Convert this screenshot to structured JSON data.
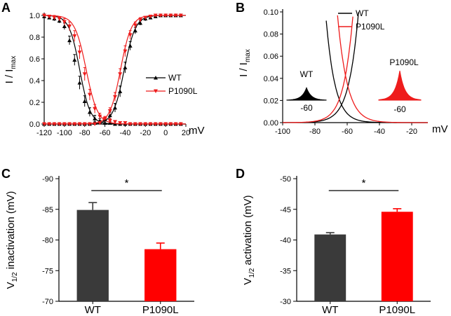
{
  "panels": [
    {
      "label": "A"
    },
    {
      "label": "B"
    },
    {
      "label": "C"
    },
    {
      "label": "D"
    }
  ],
  "colors": {
    "wt": "#000000",
    "mut": "#ee1c1c",
    "wt_bar": "#3a3a3a",
    "mut_bar": "#ff0000"
  },
  "chart_data": [
    {
      "panel": "A",
      "type": "line",
      "xlabel": "mV",
      "ylabel": "I / I",
      "ylabel_sub": "max",
      "xlim": [
        -120,
        20
      ],
      "ylim": [
        0,
        1.0
      ],
      "xticks": [
        -120,
        -100,
        -80,
        -60,
        -40,
        -20,
        0,
        20
      ],
      "xtick_labels": [
        "-120",
        "-100",
        "-80",
        "-60",
        "-40",
        "-20",
        "0",
        "20"
      ],
      "yticks": [
        0.0,
        0.2,
        0.4,
        0.6,
        0.8,
        1.0
      ],
      "ytick_labels": [
        "0.0",
        "0.2",
        "0.4",
        "0.6",
        "0.8",
        "1.0"
      ],
      "legend": [
        "WT",
        "P1090L"
      ],
      "x": [
        -120,
        -115,
        -110,
        -105,
        -100,
        -95,
        -90,
        -85,
        -80,
        -75,
        -70,
        -65,
        -60,
        -55,
        -50,
        -45,
        -40,
        -35,
        -30,
        -25,
        -20,
        -15,
        -10,
        -5,
        0,
        5,
        10,
        15
      ],
      "series": [
        {
          "name": "WT inactivation",
          "v_half": -84.9,
          "k": 5.2,
          "kind": "inactivation",
          "color_key": "wt",
          "marker": "triangle-up",
          "values": [
            0.99,
            0.98,
            0.97,
            0.95,
            0.9,
            0.77,
            0.59,
            0.38,
            0.21,
            0.11,
            0.05,
            0.03,
            0.01,
            0.01,
            0.0,
            0.0,
            0.0,
            0.0,
            0.0,
            0.0,
            0.0,
            0.0,
            0.0,
            0.0,
            0.0,
            0.0,
            0.0,
            0.0
          ],
          "errors": [
            0.01,
            0.01,
            0.02,
            0.02,
            0.03,
            0.04,
            0.05,
            0.06,
            0.05,
            0.04,
            0.03,
            0.02,
            0.02,
            0.01,
            0.0,
            0.0,
            0.0,
            0.0,
            0.0,
            0.0,
            0.0,
            0.0,
            0.0,
            0.0,
            0.0,
            0.0,
            0.0,
            0.0
          ]
        },
        {
          "name": "P1090L inactivation",
          "v_half": -78.5,
          "k": 5.6,
          "kind": "inactivation",
          "color_key": "mut",
          "marker": "triangle-down",
          "values": [
            1.0,
            0.99,
            0.98,
            0.97,
            0.94,
            0.9,
            0.81,
            0.66,
            0.46,
            0.27,
            0.14,
            0.07,
            0.04,
            0.03,
            0.02,
            0.01,
            0.01,
            0.0,
            0.0,
            0.0,
            0.0,
            0.0,
            0.0,
            0.0,
            0.0,
            0.0,
            0.0,
            0.0
          ],
          "errors": [
            0.01,
            0.01,
            0.02,
            0.02,
            0.03,
            0.04,
            0.05,
            0.06,
            0.06,
            0.05,
            0.04,
            0.03,
            0.02,
            0.02,
            0.01,
            0.01,
            0.0,
            0.0,
            0.0,
            0.0,
            0.0,
            0.0,
            0.0,
            0.0,
            0.0,
            0.0,
            0.0,
            0.0
          ]
        },
        {
          "name": "WT activation",
          "v_half": -40.9,
          "k": 5.5,
          "kind": "activation",
          "color_key": "wt",
          "marker": "triangle-up",
          "values": [
            0.0,
            0.0,
            0.0,
            0.0,
            0.0,
            0.0,
            0.0,
            0.0,
            0.0,
            0.0,
            0.01,
            0.02,
            0.04,
            0.08,
            0.15,
            0.3,
            0.52,
            0.72,
            0.86,
            0.93,
            0.97,
            0.98,
            0.99,
            1.0,
            1.0,
            1.0,
            1.0,
            1.0
          ],
          "errors": [
            0.0,
            0.0,
            0.0,
            0.0,
            0.0,
            0.0,
            0.0,
            0.0,
            0.0,
            0.0,
            0.01,
            0.01,
            0.02,
            0.03,
            0.04,
            0.05,
            0.05,
            0.04,
            0.03,
            0.02,
            0.02,
            0.01,
            0.01,
            0.0,
            0.0,
            0.0,
            0.0,
            0.0
          ]
        },
        {
          "name": "P1090L activation",
          "v_half": -44.6,
          "k": 5.3,
          "kind": "activation",
          "color_key": "mut",
          "marker": "triangle-down",
          "values": [
            0.0,
            0.0,
            0.0,
            0.0,
            0.0,
            0.0,
            0.0,
            0.0,
            0.0,
            0.0,
            0.0,
            0.01,
            0.05,
            0.12,
            0.25,
            0.46,
            0.67,
            0.82,
            0.91,
            0.96,
            0.98,
            0.99,
            1.0,
            1.0,
            1.0,
            1.0,
            1.0,
            1.0
          ],
          "errors": [
            0.0,
            0.0,
            0.0,
            0.0,
            0.0,
            0.0,
            0.0,
            0.0,
            0.0,
            0.0,
            0.0,
            0.01,
            0.02,
            0.03,
            0.04,
            0.05,
            0.05,
            0.04,
            0.03,
            0.02,
            0.01,
            0.01,
            0.0,
            0.0,
            0.0,
            0.0,
            0.0,
            0.0
          ]
        }
      ]
    },
    {
      "panel": "B",
      "type": "line",
      "xlabel": "mV",
      "ylabel": "I / I",
      "ylabel_sub": "max",
      "xlim": [
        -100,
        -10
      ],
      "ylim": [
        0,
        0.1
      ],
      "xticks": [
        -100,
        -80,
        -60,
        -40,
        -20
      ],
      "xtick_labels": [
        "-100",
        "-80",
        "-60",
        "-40",
        "-20"
      ],
      "yticks": [
        0.0,
        0.02,
        0.04,
        0.06,
        0.08,
        0.1
      ],
      "ytick_labels": [
        "0.00",
        "0.02",
        "0.04",
        "0.06",
        "0.08",
        "0.10"
      ],
      "legend": [
        "WT",
        "P1090L"
      ],
      "series": [
        {
          "name": "WT",
          "color_key": "wt",
          "v_act": -40.9,
          "k_act": 5.5,
          "v_inact": -84.9,
          "k_inact": 5.2
        },
        {
          "name": "P1090L",
          "color_key": "mut",
          "v_act": -44.6,
          "k_act": 5.3,
          "v_inact": -78.5,
          "k_inact": 5.6
        }
      ],
      "insets": [
        {
          "name": "WT",
          "center_label": "-60",
          "color_key": "wt",
          "peak": 0.016
        },
        {
          "name": "P1090L",
          "center_label": "-60",
          "color_key": "mut",
          "peak": 0.038
        }
      ]
    },
    {
      "panel": "C",
      "type": "bar",
      "title": "",
      "categories": [
        "WT",
        "P1090L"
      ],
      "values": [
        -84.9,
        -78.5
      ],
      "errors": [
        1.2,
        1.0
      ],
      "ylabel": "V",
      "ylabel_sub": "1/2",
      "ylabel_rest": " inactivation (mV)",
      "ylim": [
        -70,
        -90
      ],
      "yticks": [
        -90,
        -85,
        -80,
        -75,
        -70
      ],
      "ytick_labels": [
        "-90",
        "-85",
        "-80",
        "-75",
        "-70"
      ],
      "significance": "*"
    },
    {
      "panel": "D",
      "type": "bar",
      "title": "",
      "categories": [
        "WT",
        "P1090L"
      ],
      "values": [
        -40.9,
        -44.6
      ],
      "errors": [
        0.3,
        0.5
      ],
      "ylabel": "V",
      "ylabel_sub": "1/2",
      "ylabel_rest": " activation (mV)",
      "ylim": [
        -30,
        -50
      ],
      "yticks": [
        -50,
        -45,
        -40,
        -35,
        -30
      ],
      "ytick_labels": [
        "-50",
        "-45",
        "-40",
        "-35",
        "-30"
      ],
      "significance": "*"
    }
  ]
}
